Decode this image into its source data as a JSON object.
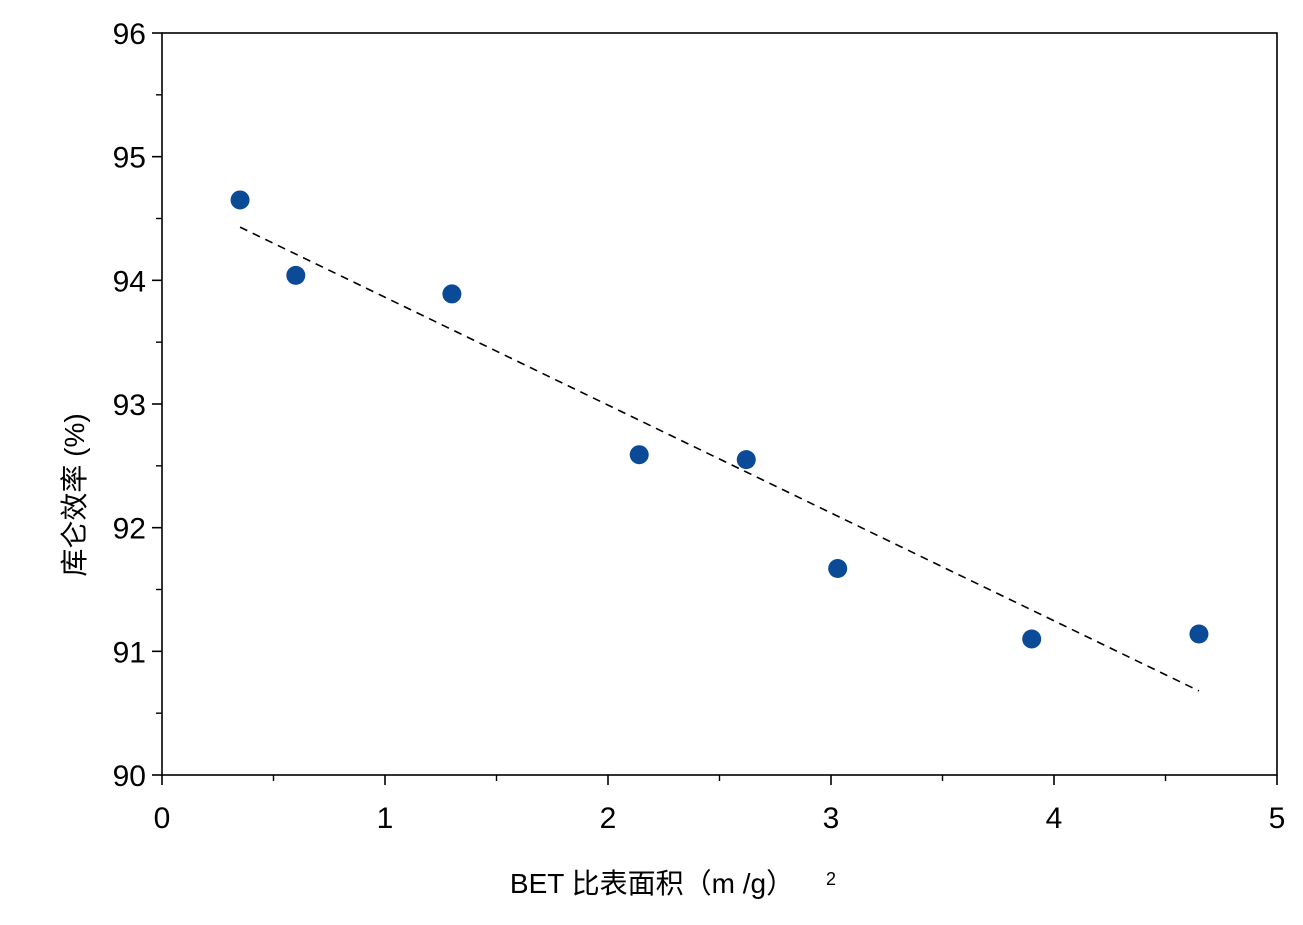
{
  "chart_data": {
    "type": "scatter",
    "title": "",
    "xlabel": "BET 比表面积（m /g）",
    "xlabel_superscript": "2",
    "ylabel": "库仑效率 (%)",
    "xlim": [
      0,
      5
    ],
    "ylim": [
      90,
      96
    ],
    "x_ticks": [
      "0",
      "1",
      "2",
      "3",
      "4",
      "5"
    ],
    "y_ticks": [
      "90",
      "91",
      "92",
      "93",
      "94",
      "95",
      "96"
    ],
    "grid": false,
    "legend": "none",
    "marker_color": "#0b4a96",
    "series": [
      {
        "x": [
          0.35,
          0.6,
          1.3,
          2.14,
          2.62,
          3.03,
          3.9,
          4.65
        ],
        "y": [
          94.65,
          94.04,
          93.89,
          92.59,
          92.55,
          91.67,
          91.1,
          91.14
        ]
      }
    ],
    "trendline": {
      "style": "dashed",
      "color": "#000000",
      "x": [
        0.35,
        4.65
      ],
      "y": [
        94.43,
        90.68
      ]
    }
  }
}
